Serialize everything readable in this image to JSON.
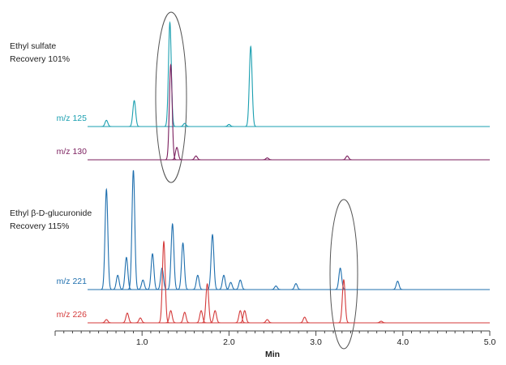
{
  "chart_data": {
    "type": "chromatogram",
    "groups": [
      {
        "title": "Ethyl sulfate",
        "subtitle": "Recovery 101%"
      },
      {
        "title": "Ethyl β-D-glucuronide",
        "subtitle": "Recovery 115%"
      }
    ],
    "series": [
      {
        "name": "m/z 125",
        "color": "#1a9fb0",
        "x": [
          0.59,
          0.91,
          1.32,
          1.49,
          2.0,
          2.25
        ],
        "values": [
          6,
          25,
          100,
          3,
          2,
          77
        ]
      },
      {
        "name": "m/z 130",
        "color": "#7b1f5e",
        "x": [
          1.33,
          1.4,
          1.62,
          2.44,
          3.36
        ],
        "values": [
          100,
          13,
          4,
          2,
          4
        ]
      },
      {
        "name": "m/z 221",
        "color": "#1f6fae",
        "x": [
          0.59,
          0.72,
          0.82,
          0.9,
          1.01,
          1.12,
          1.23,
          1.35,
          1.47,
          1.64,
          1.81,
          1.94,
          2.02,
          2.13,
          2.54,
          2.77,
          3.28,
          3.94
        ],
        "values": [
          84,
          12,
          27,
          100,
          8,
          30,
          18,
          55,
          39,
          12,
          46,
          12,
          6,
          8,
          3,
          5,
          18,
          7
        ]
      },
      {
        "name": "m/z 226",
        "color": "#d43a3a",
        "x": [
          0.59,
          0.83,
          0.98,
          1.25,
          1.33,
          1.49,
          1.68,
          1.75,
          1.84,
          2.13,
          2.18,
          2.44,
          2.87,
          3.32,
          3.75
        ],
        "values": [
          4,
          12,
          6,
          100,
          15,
          13,
          15,
          48,
          15,
          15,
          15,
          4,
          7,
          53,
          2
        ]
      }
    ],
    "xlabel": "Min",
    "xlim": [
      0,
      5
    ],
    "xticks": [
      0,
      {
        "value": 1,
        "label": "1.0"
      },
      {
        "value": 2,
        "label": "2.0"
      },
      {
        "value": 3,
        "label": "3.0"
      },
      {
        "value": 4,
        "label": "4.0"
      },
      {
        "value": 5,
        "label": "5.0"
      }
    ],
    "xminorticks": [
      0.1,
      0.2,
      0.3,
      0.4,
      0.5,
      0.6,
      0.7,
      0.8,
      0.9,
      1.1,
      1.2,
      1.3,
      1.4,
      1.5,
      1.6,
      1.7,
      1.8,
      1.9,
      2.1,
      2.2,
      2.3,
      2.4,
      2.5,
      2.6,
      2.7,
      2.8,
      2.9,
      3.1,
      3.2,
      3.3,
      3.4,
      3.5,
      3.6,
      3.7,
      3.8,
      3.9,
      4.1,
      4.2,
      4.3,
      4.4,
      4.5,
      4.6,
      4.7,
      4.8,
      4.9
    ]
  }
}
